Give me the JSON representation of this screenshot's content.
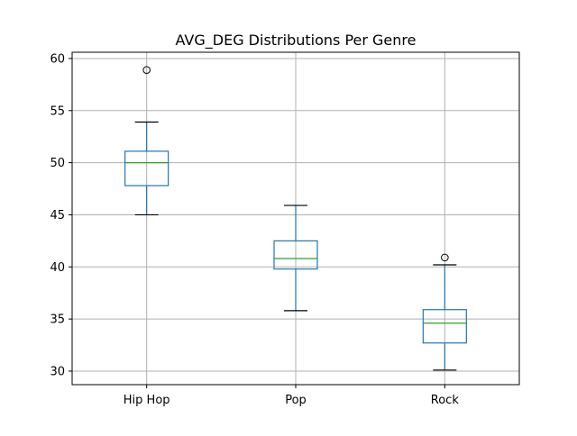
{
  "chart_data": {
    "type": "box",
    "title": "AVG_DEG Distributions Per Genre",
    "xlabel": "",
    "ylabel": "",
    "categories": [
      "Hip Hop",
      "Pop",
      "Rock"
    ],
    "ylim": [
      28.7,
      60.6
    ],
    "yticks": [
      30,
      35,
      40,
      45,
      50,
      55,
      60
    ],
    "grid": true,
    "colors": {
      "box": "#1f77b4",
      "median": "#2ca02c",
      "whisker_cap": "#000000",
      "grid": "#b0b0b0",
      "axes": "#000000"
    },
    "boxes": [
      {
        "category": "Hip Hop",
        "whisker_low": 45.0,
        "q1": 47.8,
        "median": 50.0,
        "q3": 51.1,
        "whisker_high": 53.9,
        "outliers": [
          58.9
        ]
      },
      {
        "category": "Pop",
        "whisker_low": 35.8,
        "q1": 39.8,
        "median": 40.8,
        "q3": 42.5,
        "whisker_high": 45.9,
        "outliers": []
      },
      {
        "category": "Rock",
        "whisker_low": 30.1,
        "q1": 32.7,
        "median": 34.6,
        "q3": 35.9,
        "whisker_high": 40.2,
        "outliers": [
          40.9
        ]
      }
    ]
  }
}
